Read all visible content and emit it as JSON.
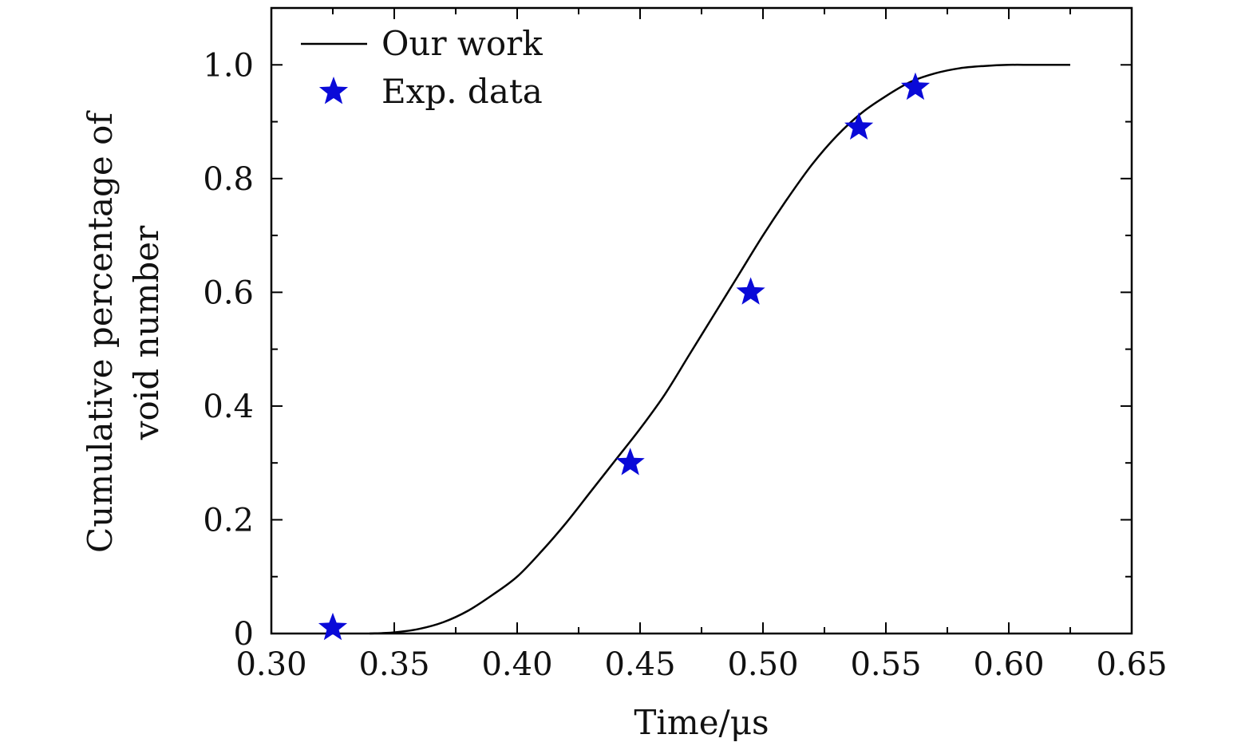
{
  "chart_data": {
    "type": "line",
    "title": "",
    "xlabel": "Time/μs",
    "ylabel_lines": [
      "Cumulative percentage of",
      "void number"
    ],
    "xlim": [
      0.3,
      0.65
    ],
    "ylim": [
      0,
      1.1
    ],
    "x_ticks": [
      0.3,
      0.35,
      0.4,
      0.45,
      0.5,
      0.55,
      0.6,
      0.65
    ],
    "x_tick_labels": [
      "0.30",
      "0.35",
      "0.40",
      "0.45",
      "0.50",
      "0.55",
      "0.60",
      "0.65"
    ],
    "y_ticks": [
      0,
      0.2,
      0.4,
      0.6,
      0.8,
      1.0
    ],
    "y_tick_labels": [
      "0",
      "0.2",
      "0.4",
      "0.6",
      "0.8",
      "1.0"
    ],
    "grid": false,
    "legend_position": "top-left",
    "series": [
      {
        "name": "Our work",
        "kind": "line",
        "color": "#000000",
        "x": [
          0.34,
          0.35,
          0.36,
          0.37,
          0.38,
          0.39,
          0.4,
          0.41,
          0.42,
          0.43,
          0.44,
          0.45,
          0.46,
          0.47,
          0.48,
          0.49,
          0.5,
          0.51,
          0.52,
          0.53,
          0.54,
          0.55,
          0.56,
          0.57,
          0.58,
          0.59,
          0.6,
          0.61,
          0.625
        ],
        "y": [
          0.0,
          0.002,
          0.008,
          0.02,
          0.04,
          0.068,
          0.1,
          0.145,
          0.195,
          0.25,
          0.305,
          0.36,
          0.42,
          0.49,
          0.56,
          0.63,
          0.7,
          0.765,
          0.825,
          0.875,
          0.915,
          0.945,
          0.97,
          0.985,
          0.994,
          0.998,
          1.0,
          1.0,
          1.0
        ]
      },
      {
        "name": "Exp. data",
        "kind": "scatter",
        "marker": "star",
        "color": "#0a0ad8",
        "x": [
          0.325,
          0.446,
          0.495,
          0.539,
          0.562
        ],
        "y": [
          0.01,
          0.3,
          0.6,
          0.89,
          0.96
        ]
      }
    ]
  }
}
